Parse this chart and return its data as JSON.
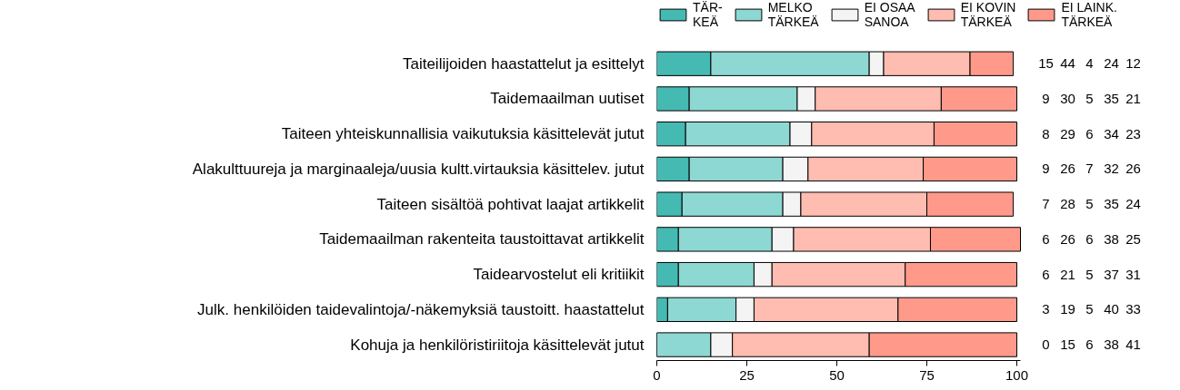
{
  "chart_data": {
    "type": "bar",
    "orientation": "horizontal",
    "stacked": true,
    "categories": [
      "Taiteilijoiden haastattelut ja esittelyt",
      "Taidemaailman uutiset",
      "Taiteen yhteiskunnallisia vaikutuksia käsittelevät jutut",
      "Alakulttuureja ja marginaaleja/uusia kultt.virtauksia käsittelev. jutut",
      "Taiteen sisältöä pohtivat laajat artikkelit",
      "Taidemaailman rakenteita taustoittavat artikkelit",
      "Taidearvostelut eli kritiikit",
      "Julk. henkilöiden taidevalintoja/-näkemyksiä taustoitt. haastattelut",
      "Kohuja ja henkilöristiriitoja käsittelevät jutut"
    ],
    "series": [
      {
        "name": "TÄR-\nKEÄ",
        "color": "#45bab3",
        "values": [
          15,
          9,
          8,
          9,
          7,
          6,
          6,
          3,
          0
        ]
      },
      {
        "name": "MELKO\nTÄRKEÄ",
        "color": "#8ed8d3",
        "values": [
          44,
          30,
          29,
          26,
          28,
          26,
          21,
          19,
          15
        ]
      },
      {
        "name": "EI OSAA\nSANOA",
        "color": "#f4f4f4",
        "values": [
          4,
          5,
          6,
          7,
          5,
          6,
          5,
          5,
          6
        ]
      },
      {
        "name": "EI KOVIN\nTÄRKEÄ",
        "color": "#ffbcb0",
        "values": [
          24,
          35,
          34,
          32,
          35,
          38,
          37,
          40,
          38
        ]
      },
      {
        "name": "EI LAINK.\nTÄRKEÄ",
        "color": "#ff9a8a",
        "values": [
          12,
          21,
          23,
          26,
          24,
          25,
          31,
          33,
          41
        ]
      }
    ],
    "xlim": [
      0,
      101
    ],
    "xticks": [
      0,
      25,
      50,
      75,
      100
    ],
    "grid": false,
    "legend": "top",
    "data_labels": true
  }
}
